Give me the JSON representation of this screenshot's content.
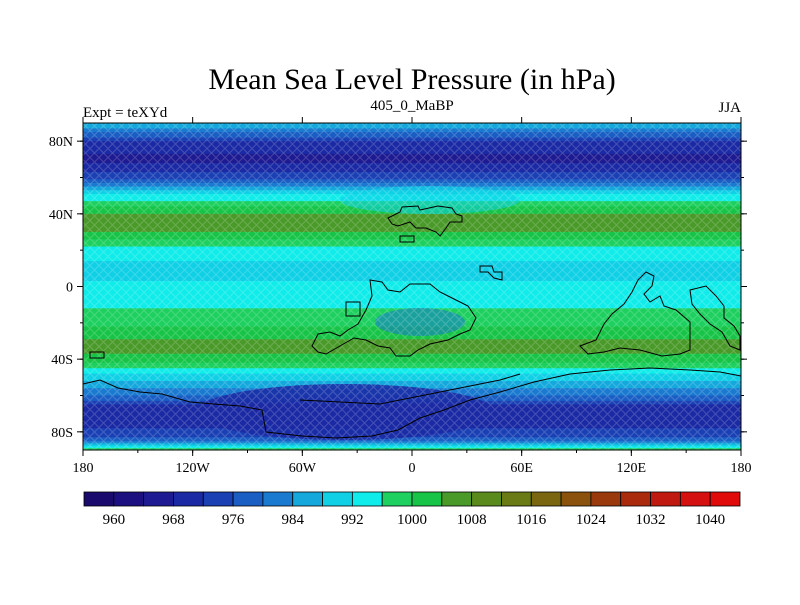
{
  "title": "Mean Sea Level Pressure (in hPa)",
  "left_string": "Expt = teXYd",
  "center_string": "405_0_MaBP",
  "right_string": "JJA",
  "lat_ticks": [
    "80N",
    "40N",
    "0",
    "40S",
    "80S"
  ],
  "lon_ticks": [
    "180",
    "120W",
    "60W",
    "0",
    "60E",
    "120E",
    "180"
  ],
  "colorbar": {
    "labels": [
      "960",
      "968",
      "976",
      "984",
      "992",
      "1000",
      "1008",
      "1016",
      "1024",
      "1032",
      "1040"
    ],
    "colors": [
      "#1a0a6e",
      "#1c0f80",
      "#1e1a92",
      "#1b2aa4",
      "#1a40b4",
      "#1a5ec4",
      "#1a7ad0",
      "#14a8dc",
      "#10d0e6",
      "#10ecea",
      "#1ed060",
      "#18c448",
      "#4a9a2a",
      "#5a8a1c",
      "#6a7a14",
      "#7a6610",
      "#8a520c",
      "#9a3a0c",
      "#aa2a0e",
      "#c01a10",
      "#d41010",
      "#e00a0a"
    ]
  },
  "chart_data": {
    "type": "heatmap",
    "variable": "Mean Sea Level Pressure",
    "units": "hPa",
    "experiment": "teXYd",
    "period": "405_0_MaBP",
    "season": "JJA",
    "lon_range": [
      -180,
      180
    ],
    "lat_range": [
      -90,
      90
    ],
    "levels": [
      960,
      964,
      968,
      972,
      976,
      980,
      984,
      988,
      992,
      996,
      1000,
      1004,
      1008,
      1012,
      1016,
      1020,
      1024,
      1028,
      1032,
      1036,
      1040
    ],
    "zonal_profile": [
      {
        "lat": 88,
        "value": 986
      },
      {
        "lat": 80,
        "value": 972
      },
      {
        "lat": 70,
        "value": 966
      },
      {
        "lat": 60,
        "value": 974
      },
      {
        "lat": 50,
        "value": 993
      },
      {
        "lat": 40,
        "value": 1004
      },
      {
        "lat": 32,
        "value": 1006
      },
      {
        "lat": 22,
        "value": 996
      },
      {
        "lat": 10,
        "value": 990
      },
      {
        "lat": 0,
        "value": 993
      },
      {
        "lat": -10,
        "value": 995
      },
      {
        "lat": -22,
        "value": 1000
      },
      {
        "lat": -32,
        "value": 1006
      },
      {
        "lat": -40,
        "value": 1003
      },
      {
        "lat": -50,
        "value": 990
      },
      {
        "lat": -60,
        "value": 980
      },
      {
        "lat": -68,
        "value": 968
      },
      {
        "lat": -78,
        "value": 972
      },
      {
        "lat": -85,
        "value": 978
      },
      {
        "lat": -90,
        "value": 1000
      }
    ]
  }
}
